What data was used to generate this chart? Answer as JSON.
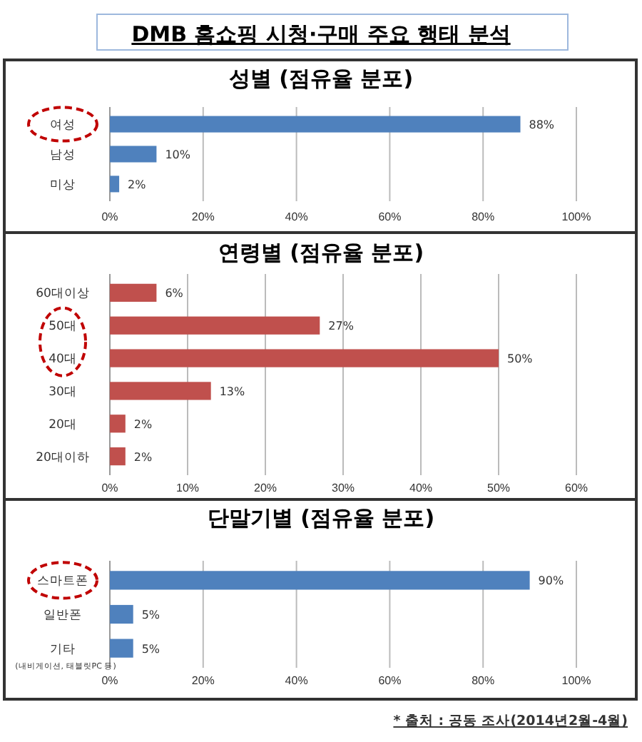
{
  "chart_data": [
    {
      "type": "bar",
      "orientation": "horizontal",
      "title": "성별 (점유율 분포)",
      "annotations": [
        "DMB 홈쇼핑 시청·구매 주요 행태 분석"
      ],
      "categories": [
        "여성",
        "남성",
        "미상"
      ],
      "values": [
        88,
        10,
        2
      ],
      "value_labels": [
        "88%",
        "10%",
        "2%"
      ],
      "color": "#4f81bd",
      "xlim": [
        0,
        100
      ],
      "xticks": [
        {
          "value": 0,
          "label": "0%"
        },
        {
          "value": 20,
          "label": "20%"
        },
        {
          "value": 40,
          "label": "40%"
        },
        {
          "value": 60,
          "label": "60%"
        },
        {
          "value": 80,
          "label": "80%"
        },
        {
          "value": 100,
          "label": "100%"
        }
      ],
      "grid": "x"
    },
    {
      "type": "bar",
      "orientation": "horizontal",
      "title": "연령별 (점유율 분포)",
      "categories": [
        "60대이상",
        "50대",
        "40대",
        "30대",
        "20대",
        "20대이하"
      ],
      "values": [
        6,
        27,
        50,
        13,
        2,
        2
      ],
      "value_labels": [
        "6%",
        "27%",
        "50%",
        "13%",
        "2%",
        "2%"
      ],
      "color": "#c0504d",
      "xlim": [
        0,
        60
      ],
      "xticks": [
        {
          "value": 0,
          "label": "0%"
        },
        {
          "value": 10,
          "label": "10%"
        },
        {
          "value": 20,
          "label": "20%"
        },
        {
          "value": 30,
          "label": "30%"
        },
        {
          "value": 40,
          "label": "40%"
        },
        {
          "value": 50,
          "label": "50%"
        },
        {
          "value": 60,
          "label": "60%"
        }
      ],
      "grid": "x"
    },
    {
      "type": "bar",
      "orientation": "horizontal",
      "title": "단말기별 (점유율 분포)",
      "annotations": [
        "* 출처 : 공동 조사(2014년2월-4월)"
      ],
      "categories": [
        "스마트폰",
        "일반폰",
        "기타\n(내비게이션, 태블릿PC 등)"
      ],
      "values": [
        90,
        5,
        5
      ],
      "value_labels": [
        "90%",
        "5%",
        "5%"
      ],
      "color": "#4f81bd",
      "xlim": [
        0,
        100
      ],
      "xticks": [
        {
          "value": 0,
          "label": "0%"
        },
        {
          "value": 20,
          "label": "20%"
        },
        {
          "value": 40,
          "label": "40%"
        },
        {
          "value": 60,
          "label": "60%"
        },
        {
          "value": 80,
          "label": "80%"
        },
        {
          "value": 100,
          "label": "100%"
        }
      ],
      "grid": "x"
    }
  ]
}
